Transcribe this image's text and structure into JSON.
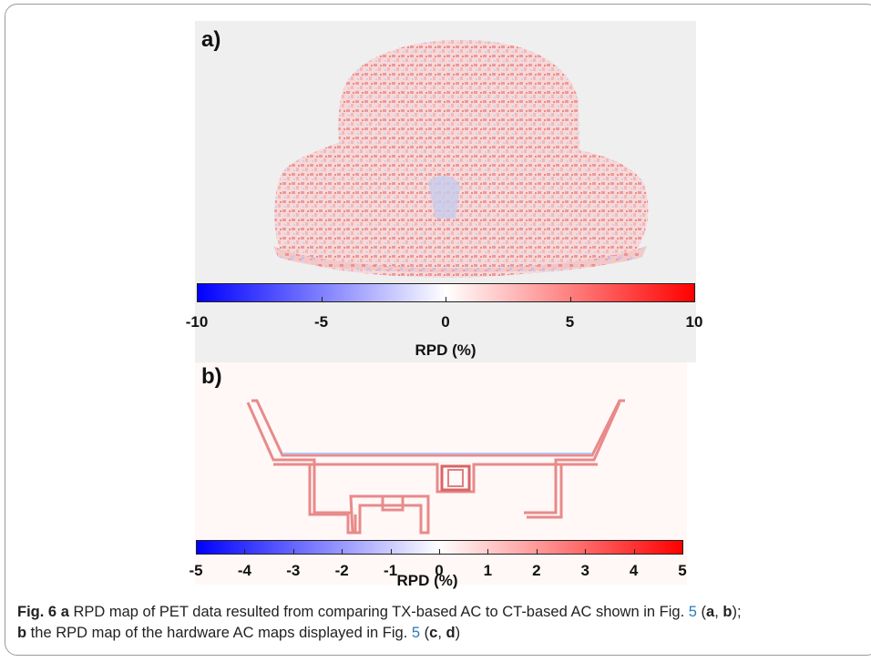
{
  "panel_a": {
    "label": "a)",
    "colorbar": {
      "ticks": [
        "-10",
        "-5",
        "0",
        "5",
        "10"
      ],
      "unit": "RPD (%)",
      "min_color": "#0000ff",
      "mid_color": "#ffffff",
      "max_color": "#ff0000"
    }
  },
  "panel_b": {
    "label": "b)",
    "colorbar": {
      "ticks": [
        "-5",
        "-4",
        "-3",
        "-2",
        "-1",
        "0",
        "1",
        "2",
        "3",
        "4",
        "5"
      ],
      "unit": "RPD (%)",
      "min_color": "#0000ff",
      "mid_color": "#ffffff",
      "max_color": "#ff0000"
    }
  },
  "caption": {
    "fig": "Fig. 6",
    "a": "a",
    "text1": " RPD map of PET data resulted from comparing TX-based AC to CT-based AC shown in Fig. ",
    "ref1": "5",
    "open1": " (",
    "a_ref": "a",
    "comma1": ", ",
    "b_ref": "b",
    "close1": ");",
    "b": "b",
    "text2": " the RPD map of the hardware AC maps displayed in Fig. ",
    "ref2": "5",
    "open2": " (",
    "c_ref": "c",
    "comma2": ", ",
    "d_ref": "d",
    "close2": ")"
  }
}
